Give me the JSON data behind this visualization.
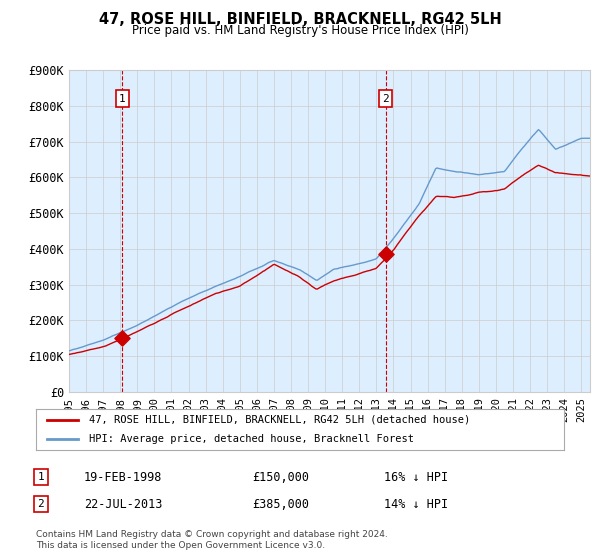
{
  "title": "47, ROSE HILL, BINFIELD, BRACKNELL, RG42 5LH",
  "subtitle": "Price paid vs. HM Land Registry's House Price Index (HPI)",
  "legend_line1": "47, ROSE HILL, BINFIELD, BRACKNELL, RG42 5LH (detached house)",
  "legend_line2": "HPI: Average price, detached house, Bracknell Forest",
  "annotation1_label": "1",
  "annotation1_date": "19-FEB-1998",
  "annotation1_price": "£150,000",
  "annotation1_hpi": "16% ↓ HPI",
  "annotation1_year": 1998.13,
  "annotation1_value": 150000,
  "annotation2_label": "2",
  "annotation2_date": "22-JUL-2013",
  "annotation2_price": "£385,000",
  "annotation2_hpi": "14% ↓ HPI",
  "annotation2_year": 2013.55,
  "annotation2_value": 385000,
  "xmin": 1995,
  "xmax": 2025,
  "ymin": 0,
  "ymax": 900000,
  "yticks": [
    0,
    100000,
    200000,
    300000,
    400000,
    500000,
    600000,
    700000,
    800000,
    900000
  ],
  "ytick_labels": [
    "£0",
    "£100K",
    "£200K",
    "£300K",
    "£400K",
    "£500K",
    "£600K",
    "£700K",
    "£800K",
    "£900K"
  ],
  "xtick_years": [
    1995,
    1996,
    1997,
    1998,
    1999,
    2000,
    2001,
    2002,
    2003,
    2004,
    2005,
    2006,
    2007,
    2008,
    2009,
    2010,
    2011,
    2012,
    2013,
    2014,
    2015,
    2016,
    2017,
    2018,
    2019,
    2020,
    2021,
    2022,
    2023,
    2024,
    2025
  ],
  "hpi_color": "#6699cc",
  "price_color": "#cc0000",
  "bg_color": "#ddeeff",
  "grid_color": "#cccccc",
  "footnote": "Contains HM Land Registry data © Crown copyright and database right 2024.\nThis data is licensed under the Open Government Licence v3.0."
}
